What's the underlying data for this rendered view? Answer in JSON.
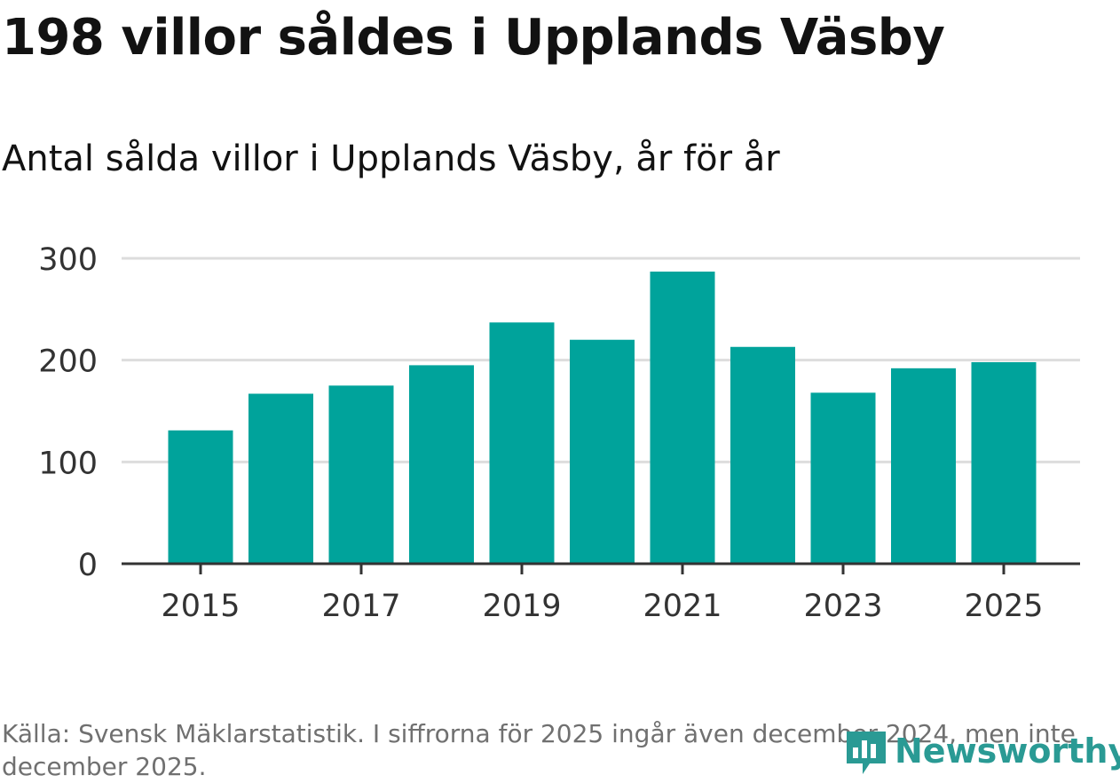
{
  "header": {
    "title": "198 villor såldes i Upplands Väsby",
    "subtitle": "Antal sålda villor i Upplands Väsby, år för år"
  },
  "footer": {
    "source": "Källa: Svensk Mäklarstatistik. I siffrorna för 2025 ingår även december 2024, men inte december 2025.",
    "brand": "Newsworthy"
  },
  "colors": {
    "bar": "#00a39b",
    "grid": "#dddddd",
    "axis": "#333333",
    "text": "#333333",
    "brand": "#2a9a94"
  },
  "chart_data": {
    "type": "bar",
    "title": "Antal sålda villor i Upplands Väsby, år för år",
    "xlabel": "",
    "ylabel": "",
    "categories": [
      "2015",
      "2016",
      "2017",
      "2018",
      "2019",
      "2020",
      "2021",
      "2022",
      "2023",
      "2024",
      "2025"
    ],
    "values": [
      131,
      167,
      175,
      195,
      237,
      220,
      287,
      213,
      168,
      192,
      198
    ],
    "ylim": [
      0,
      300
    ],
    "yticks": [
      0,
      100,
      200,
      300
    ],
    "xtick_labels": [
      "2015",
      "2017",
      "2019",
      "2021",
      "2023",
      "2025"
    ],
    "grid": true,
    "legend": "none"
  }
}
